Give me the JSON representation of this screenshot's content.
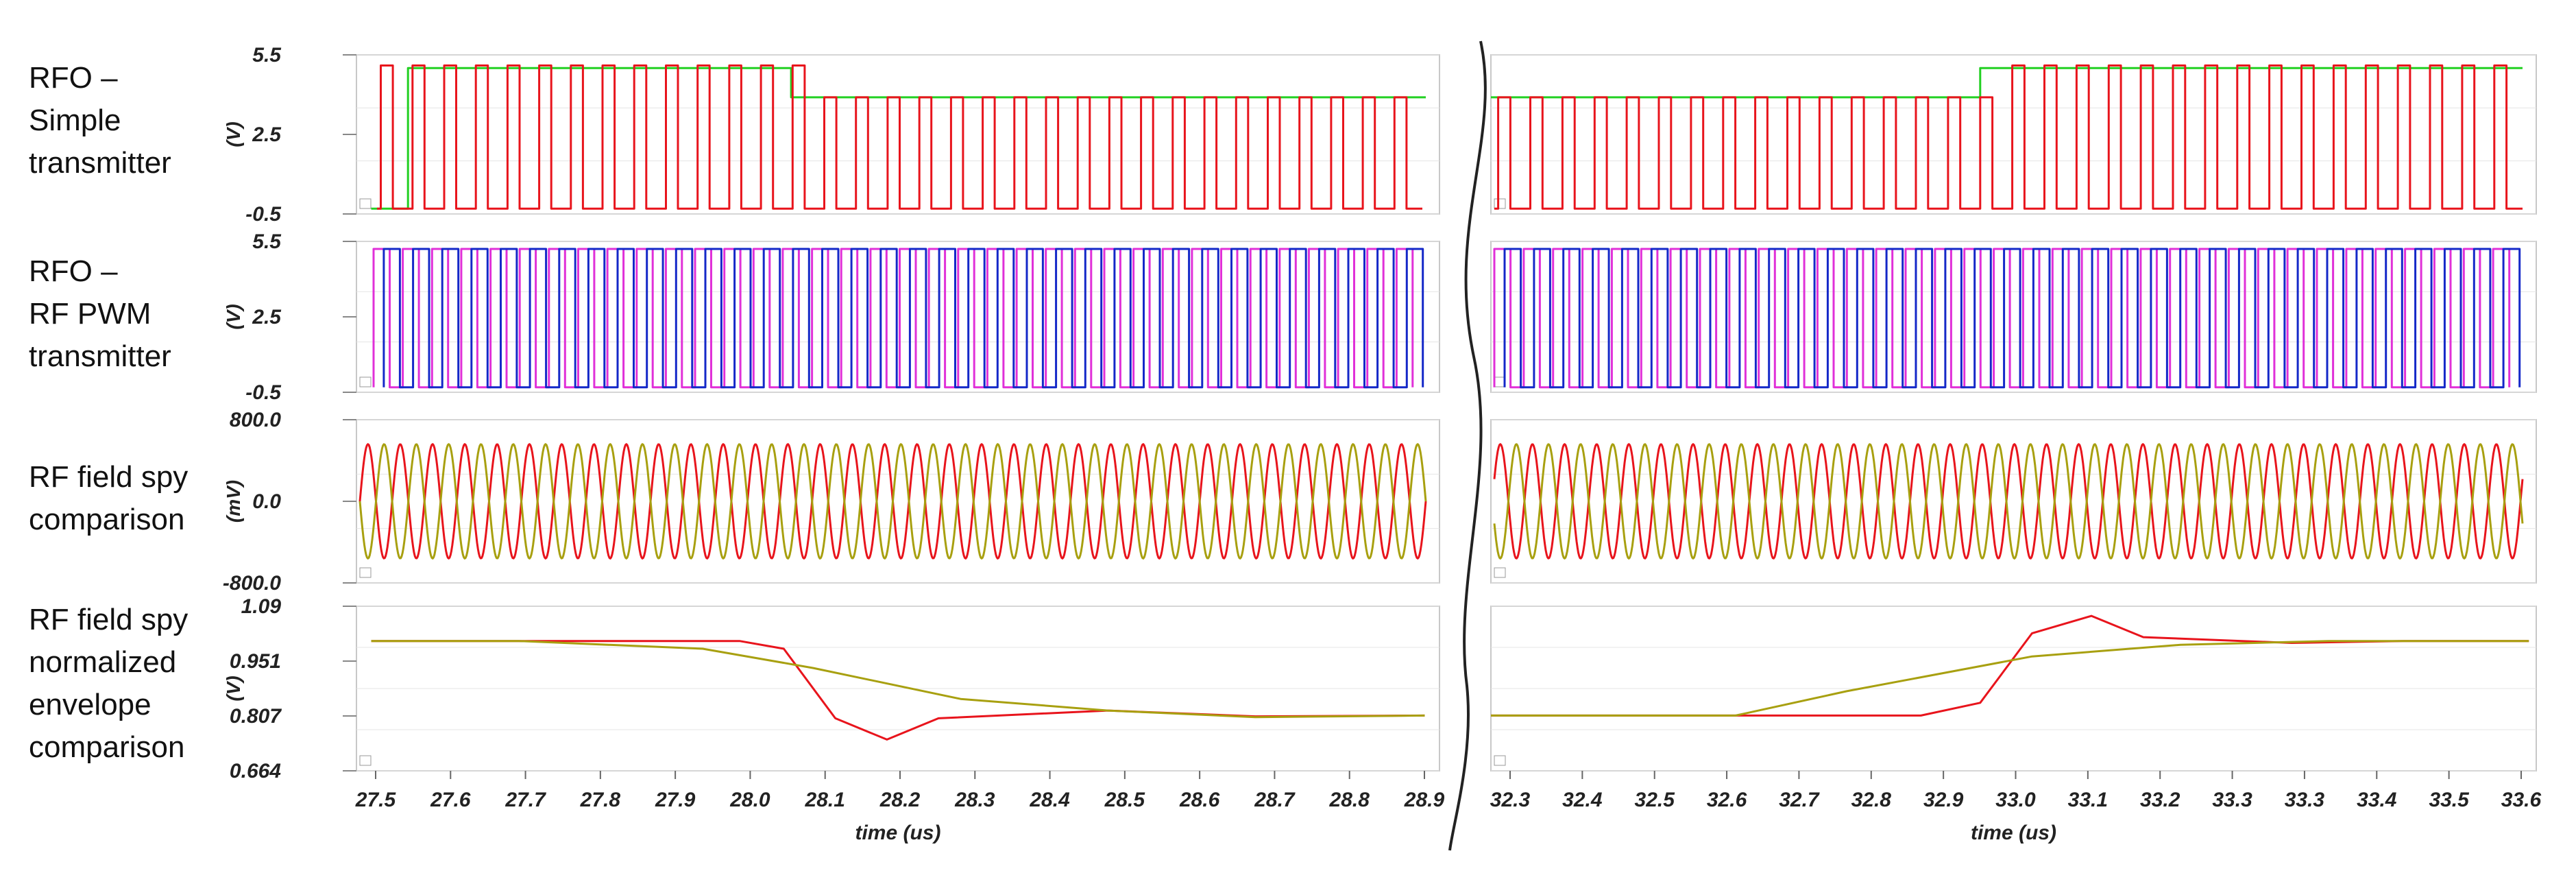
{
  "row_labels": [
    [
      "RFO –",
      "Simple",
      "transmitter"
    ],
    [
      "RFO –",
      "RF PWM",
      "transmitter"
    ],
    [
      "RF field spy",
      "comparison"
    ],
    [
      "RF field spy",
      "normalized",
      "envelope",
      "comparison"
    ]
  ],
  "colors": {
    "red": "#e8141c",
    "green": "#22d022",
    "magenta": "#e030d8",
    "blue": "#1428c8",
    "olive": "#a8a010",
    "grid": "#d0d0d0",
    "axis": "#888888"
  },
  "chart_data": [
    {
      "type": "line",
      "ylabel": "(V)",
      "yticks": [
        "5.5",
        "2.5",
        "-0.5"
      ],
      "ylim": [
        -0.5,
        5.5
      ],
      "series": [
        {
          "color": "red",
          "signal": "square",
          "low": -0.3,
          "high_left": 5.0,
          "high_right": 5.0,
          "switch_left_x": 28.07,
          "switch_right_x": 32.93
        },
        {
          "color": "green",
          "signal": "level",
          "left_levels": [
            [
              27.5,
              -0.3
            ],
            [
              27.55,
              5.0
            ],
            [
              28.07,
              3.9
            ]
          ],
          "right_levels": [
            [
              32.27,
              3.9
            ],
            [
              32.93,
              5.0
            ]
          ]
        }
      ]
    },
    {
      "type": "line",
      "ylabel": "(V)",
      "yticks": [
        "5.5",
        "2.5",
        "-0.5"
      ],
      "ylim": [
        -0.5,
        5.5
      ],
      "series": [
        {
          "color": "magenta",
          "signal": "square",
          "low": -0.3,
          "high": 5.2
        },
        {
          "color": "blue",
          "signal": "square",
          "low": -0.3,
          "high": 5.2
        }
      ]
    },
    {
      "type": "line",
      "ylabel": "(mV)",
      "yticks": [
        "800.0",
        "0.0",
        "-800.0"
      ],
      "ylim": [
        -800,
        800
      ],
      "series": [
        {
          "color": "red",
          "signal": "sine",
          "amplitude": 560
        },
        {
          "color": "olive",
          "signal": "sine",
          "amplitude": 560
        }
      ]
    },
    {
      "type": "line",
      "ylabel": "(V)",
      "yticks": [
        "1.09",
        "0.951",
        "0.807",
        "0.664"
      ],
      "ylim": [
        0.664,
        1.09
      ],
      "series": [
        {
          "color": "red",
          "left": [
            [
              27.5,
              1.0
            ],
            [
              28.0,
              1.0
            ],
            [
              28.06,
              0.98
            ],
            [
              28.13,
              0.8
            ],
            [
              28.2,
              0.745
            ],
            [
              28.27,
              0.8
            ],
            [
              28.5,
              0.82
            ],
            [
              28.7,
              0.805
            ],
            [
              28.93,
              0.807
            ]
          ],
          "right": [
            [
              32.27,
              0.807
            ],
            [
              32.85,
              0.807
            ],
            [
              32.93,
              0.84
            ],
            [
              33.0,
              1.02
            ],
            [
              33.08,
              1.065
            ],
            [
              33.15,
              1.01
            ],
            [
              33.35,
              0.995
            ],
            [
              33.5,
              1.0
            ],
            [
              33.67,
              1.0
            ]
          ]
        },
        {
          "color": "olive",
          "left": [
            [
              27.5,
              1.0
            ],
            [
              27.7,
              1.0
            ],
            [
              27.95,
              0.98
            ],
            [
              28.1,
              0.93
            ],
            [
              28.3,
              0.85
            ],
            [
              28.5,
              0.82
            ],
            [
              28.7,
              0.803
            ],
            [
              28.93,
              0.807
            ]
          ],
          "right": [
            [
              32.27,
              0.807
            ],
            [
              32.6,
              0.807
            ],
            [
              32.75,
              0.87
            ],
            [
              33.0,
              0.96
            ],
            [
              33.2,
              0.99
            ],
            [
              33.4,
              1.0
            ],
            [
              33.67,
              1.0
            ]
          ]
        }
      ]
    }
  ],
  "x_axis": {
    "left_ticks": [
      "27.5",
      "27.6",
      "27.7",
      "27.8",
      "27.9",
      "28.0",
      "28.1",
      "28.2",
      "28.3",
      "28.4",
      "28.5",
      "28.6",
      "28.7",
      "28.8",
      "28.9"
    ],
    "right_ticks": [
      "32.3",
      "32.4",
      "32.5",
      "32.6",
      "32.7",
      "32.8",
      "32.9",
      "33.0",
      "33.1",
      "33.2",
      "33.3",
      "33.3",
      "33.4",
      "33.5",
      "33.6"
    ],
    "left_range": [
      27.48,
      28.95
    ],
    "right_range": [
      32.27,
      33.68
    ],
    "label": "time (us)"
  }
}
